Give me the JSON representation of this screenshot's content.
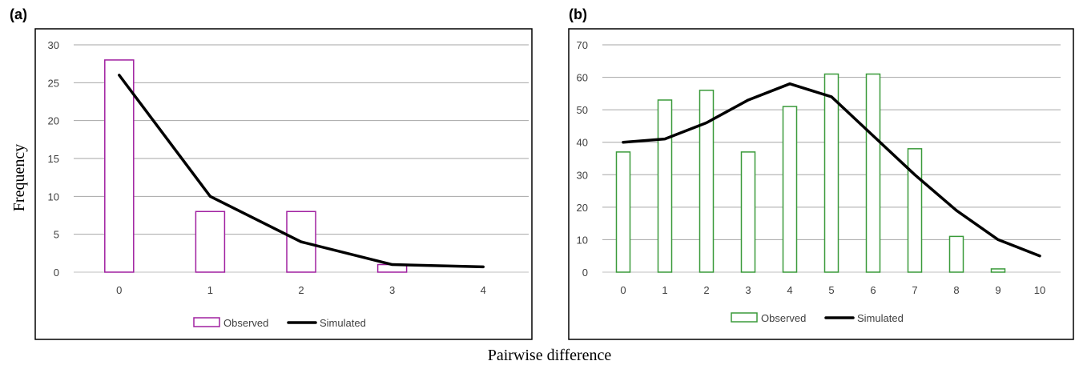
{
  "figure": {
    "ylabel": "Frequency",
    "xlabel": "Pairwise difference"
  },
  "chart_data": [
    {
      "panel_label": "(a)",
      "type": "bar",
      "categories": [
        "0",
        "1",
        "2",
        "3",
        "4"
      ],
      "ylim": [
        0,
        30
      ],
      "yticks": [
        0,
        5,
        10,
        15,
        20,
        25,
        30
      ],
      "grid": true,
      "legend": "bottom-center",
      "series": [
        {
          "name": "Observed",
          "type": "bar",
          "color": "#a020a0",
          "values": [
            28,
            8,
            8,
            1,
            null
          ]
        },
        {
          "name": "Simulated",
          "type": "line",
          "color": "#000000",
          "values": [
            26,
            10,
            4,
            1,
            0.7
          ]
        }
      ]
    },
    {
      "panel_label": "(b)",
      "type": "bar",
      "categories": [
        "0",
        "1",
        "2",
        "3",
        "4",
        "5",
        "6",
        "7",
        "8",
        "9",
        "10"
      ],
      "ylim": [
        0,
        70
      ],
      "yticks": [
        0,
        10,
        20,
        30,
        40,
        50,
        60,
        70
      ],
      "grid": true,
      "legend": "bottom-center",
      "series": [
        {
          "name": "Observed",
          "type": "bar",
          "color": "#3a9a3a",
          "values": [
            37,
            53,
            56,
            37,
            51,
            61,
            61,
            38,
            11,
            1,
            null
          ]
        },
        {
          "name": "Simulated",
          "type": "line",
          "color": "#000000",
          "values": [
            40,
            41,
            46,
            53,
            58,
            54,
            42,
            30,
            19,
            10,
            5
          ]
        }
      ]
    }
  ]
}
